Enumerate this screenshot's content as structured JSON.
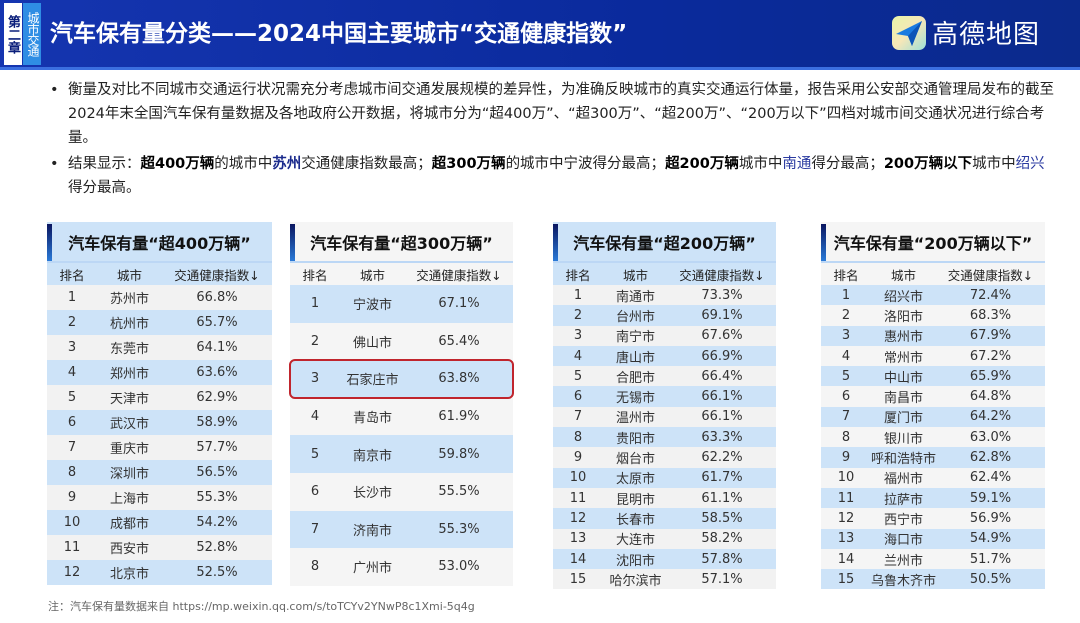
{
  "header": {
    "chapter": "第二章",
    "section": "城市交通",
    "title": "汽车保有量分类——2024中国主要城市“交通健康指数”",
    "brand": "高德地图"
  },
  "bullets": {
    "b1": "衡量及对比不同城市交通运行状况需充分考虑城市间交通发展规模的差异性，为准确反映城市的真实交通运行体量，报告采用公安部交通管理局发布的截至2024年末全国汽车保有量数据及各地政府公开数据，将城市分为“超400万”、“超300万”、“超200万”、“200万以下”四档对城市间交通状况进行综合考量。",
    "b2": [
      "结果显示：",
      "超400万辆",
      "的城市中",
      "苏州",
      "交通健康指数最高；",
      "超300万辆",
      "的城市中宁波得分最高；",
      "超200万辆",
      "城市中",
      "南通",
      "得分最高；",
      "200万辆以下",
      "城市中",
      "绍兴",
      "得分最高。"
    ]
  },
  "columns": [
    "排名",
    "城市",
    "交通健康指数↓"
  ],
  "tables": [
    {
      "title": "汽车保有量“超400万辆”",
      "rows": [
        [
          "1",
          "苏州市",
          "66.8%"
        ],
        [
          "2",
          "杭州市",
          "65.7%"
        ],
        [
          "3",
          "东莞市",
          "64.1%"
        ],
        [
          "4",
          "郑州市",
          "63.6%"
        ],
        [
          "5",
          "天津市",
          "62.9%"
        ],
        [
          "6",
          "武汉市",
          "58.9%"
        ],
        [
          "7",
          "重庆市",
          "57.7%"
        ],
        [
          "8",
          "深圳市",
          "56.5%"
        ],
        [
          "9",
          "上海市",
          "55.3%"
        ],
        [
          "10",
          "成都市",
          "54.2%"
        ],
        [
          "11",
          "西安市",
          "52.8%"
        ],
        [
          "12",
          "北京市",
          "52.5%"
        ]
      ]
    },
    {
      "title": "汽车保有量“超300万辆”",
      "rows": [
        [
          "1",
          "宁波市",
          "67.1%"
        ],
        [
          "2",
          "佛山市",
          "65.4%"
        ],
        [
          "3",
          "石家庄市",
          "63.8%"
        ],
        [
          "4",
          "青岛市",
          "61.9%"
        ],
        [
          "5",
          "南京市",
          "59.8%"
        ],
        [
          "6",
          "长沙市",
          "55.5%"
        ],
        [
          "7",
          "济南市",
          "55.3%"
        ],
        [
          "8",
          "广州市",
          "53.0%"
        ]
      ]
    },
    {
      "title": "汽车保有量“超200万辆”",
      "rows": [
        [
          "1",
          "南通市",
          "73.3%"
        ],
        [
          "2",
          "台州市",
          "69.1%"
        ],
        [
          "3",
          "南宁市",
          "67.6%"
        ],
        [
          "4",
          "唐山市",
          "66.9%"
        ],
        [
          "5",
          "合肥市",
          "66.4%"
        ],
        [
          "6",
          "无锡市",
          "66.1%"
        ],
        [
          "7",
          "温州市",
          "66.1%"
        ],
        [
          "8",
          "贵阳市",
          "63.3%"
        ],
        [
          "9",
          "烟台市",
          "62.2%"
        ],
        [
          "10",
          "太原市",
          "61.7%"
        ],
        [
          "11",
          "昆明市",
          "61.1%"
        ],
        [
          "12",
          "长春市",
          "58.5%"
        ],
        [
          "13",
          "大连市",
          "58.2%"
        ],
        [
          "14",
          "沈阳市",
          "57.8%"
        ],
        [
          "15",
          "哈尔滨市",
          "57.1%"
        ]
      ]
    },
    {
      "title": "汽车保有量“200万辆以下”",
      "rows": [
        [
          "1",
          "绍兴市",
          "72.4%"
        ],
        [
          "2",
          "洛阳市",
          "68.3%"
        ],
        [
          "3",
          "惠州市",
          "67.9%"
        ],
        [
          "4",
          "常州市",
          "67.2%"
        ],
        [
          "5",
          "中山市",
          "65.9%"
        ],
        [
          "6",
          "南昌市",
          "64.8%"
        ],
        [
          "7",
          "厦门市",
          "64.2%"
        ],
        [
          "8",
          "银川市",
          "63.0%"
        ],
        [
          "9",
          "呼和浩特市",
          "62.8%"
        ],
        [
          "10",
          "福州市",
          "62.4%"
        ],
        [
          "11",
          "拉萨市",
          "59.1%"
        ],
        [
          "12",
          "西宁市",
          "56.9%"
        ],
        [
          "13",
          "海口市",
          "54.9%"
        ],
        [
          "14",
          "兰州市",
          "51.7%"
        ],
        [
          "15",
          "乌鲁木齐市",
          "50.5%"
        ]
      ]
    }
  ],
  "footnote": "注：汽车保有量数据来自 https://mp.weixin.qq.com/s/toTCYv2YNwP8c1Xmi-5q4g",
  "colors": {
    "header_bg": "#0a2a9c",
    "row_blue": "#cde3f8",
    "row_grey": "#f2f2f2",
    "highlight_border": "#c0252d"
  }
}
